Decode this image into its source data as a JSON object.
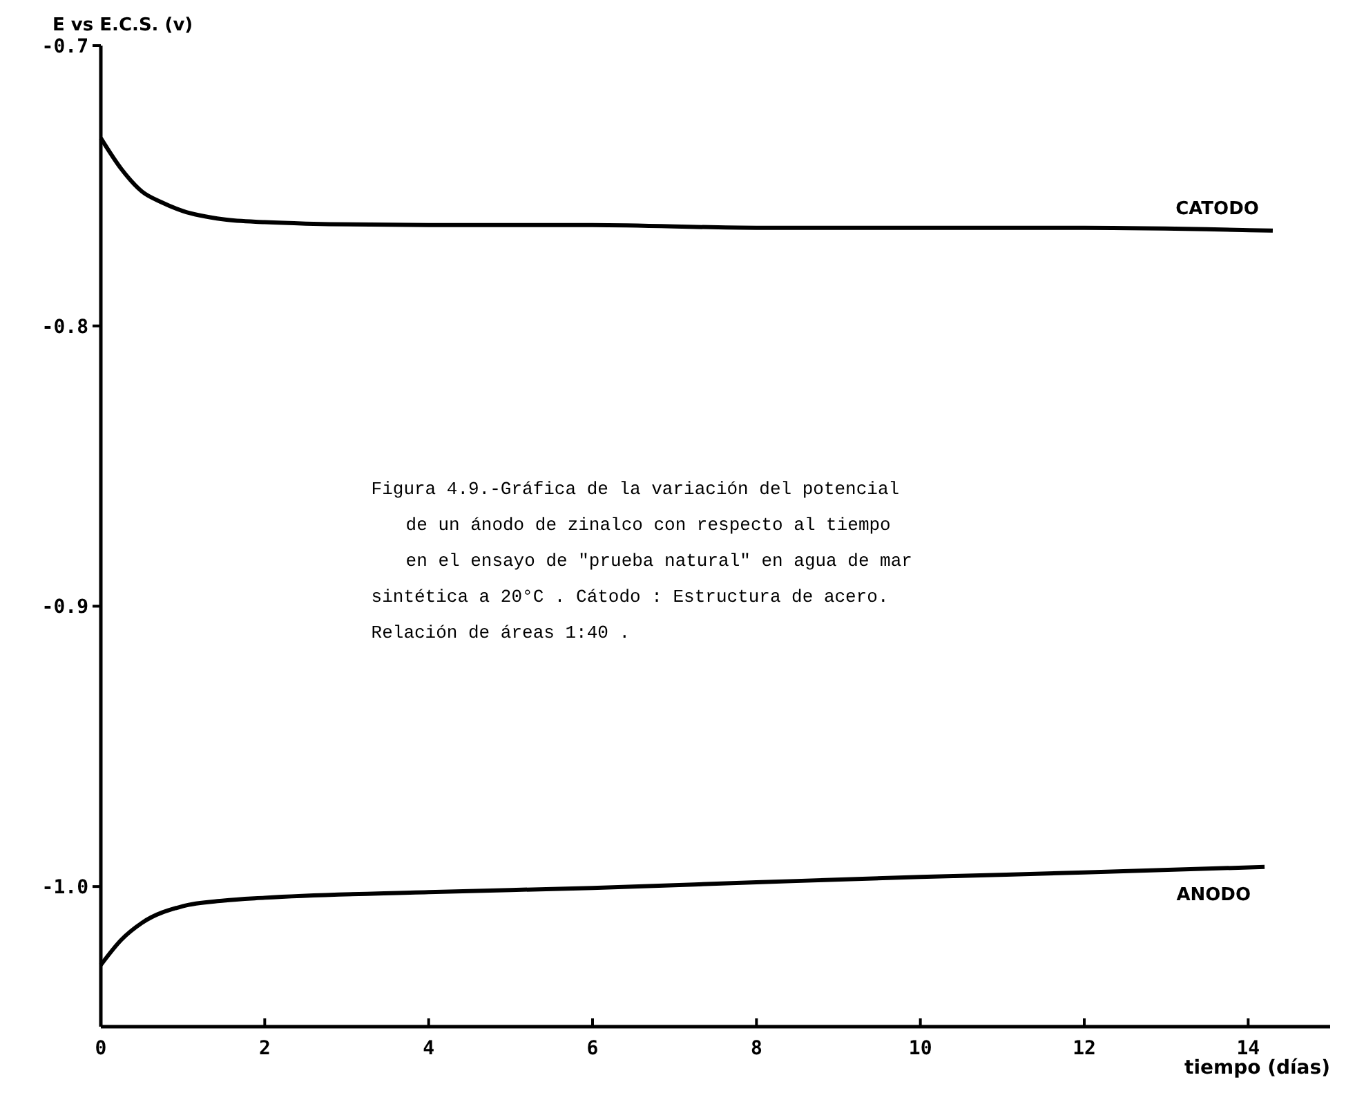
{
  "chart_data": {
    "type": "line",
    "xlabel": "tiempo (días)",
    "ylabel": "E vs E.C.S. (v)",
    "xlim": [
      0,
      15
    ],
    "xticks": [
      0,
      2,
      4,
      6,
      8,
      10,
      12,
      14
    ],
    "ylim": [
      -1.05,
      -0.7
    ],
    "yticks": [
      -0.7,
      -0.8,
      -0.9,
      {
        "value": -1,
        "label": "-1.0"
      }
    ],
    "grid": false,
    "marker": "none",
    "line_style": "solid",
    "series": [
      {
        "name": "CATODO",
        "color": "#000000",
        "x": [
          0,
          0.25,
          0.5,
          0.75,
          1,
          1.5,
          2,
          2.5,
          4,
          6,
          8,
          10,
          12,
          14.3
        ],
        "values": [
          -0.733,
          -0.744,
          -0.752,
          -0.756,
          -0.759,
          -0.762,
          -0.763,
          -0.7635,
          -0.764,
          -0.764,
          -0.765,
          -0.765,
          -0.765,
          -0.766
        ]
      },
      {
        "name": "ANODO",
        "color": "#000000",
        "x": [
          0,
          0.25,
          0.5,
          1,
          1.5,
          2,
          4,
          6,
          8,
          10,
          12,
          14.2
        ],
        "values": [
          -1.028,
          -1.019,
          -1.013,
          -1.007,
          -1.005,
          -1.004,
          -1.002,
          -1.0005,
          -0.9985,
          -0.9966,
          -0.995,
          -0.993
        ]
      }
    ],
    "annotations": [
      "Figura 4.9.-Gráfica de la variación del potencial\nde un ánodo de zinalco con respecto al tiempo\nen el ensayo de \"prueba natural\" en agua de mar\nsintética a 20°C . Cátodo : Estructura de acero.\nRelación de áreas 1:40 ."
    ]
  }
}
